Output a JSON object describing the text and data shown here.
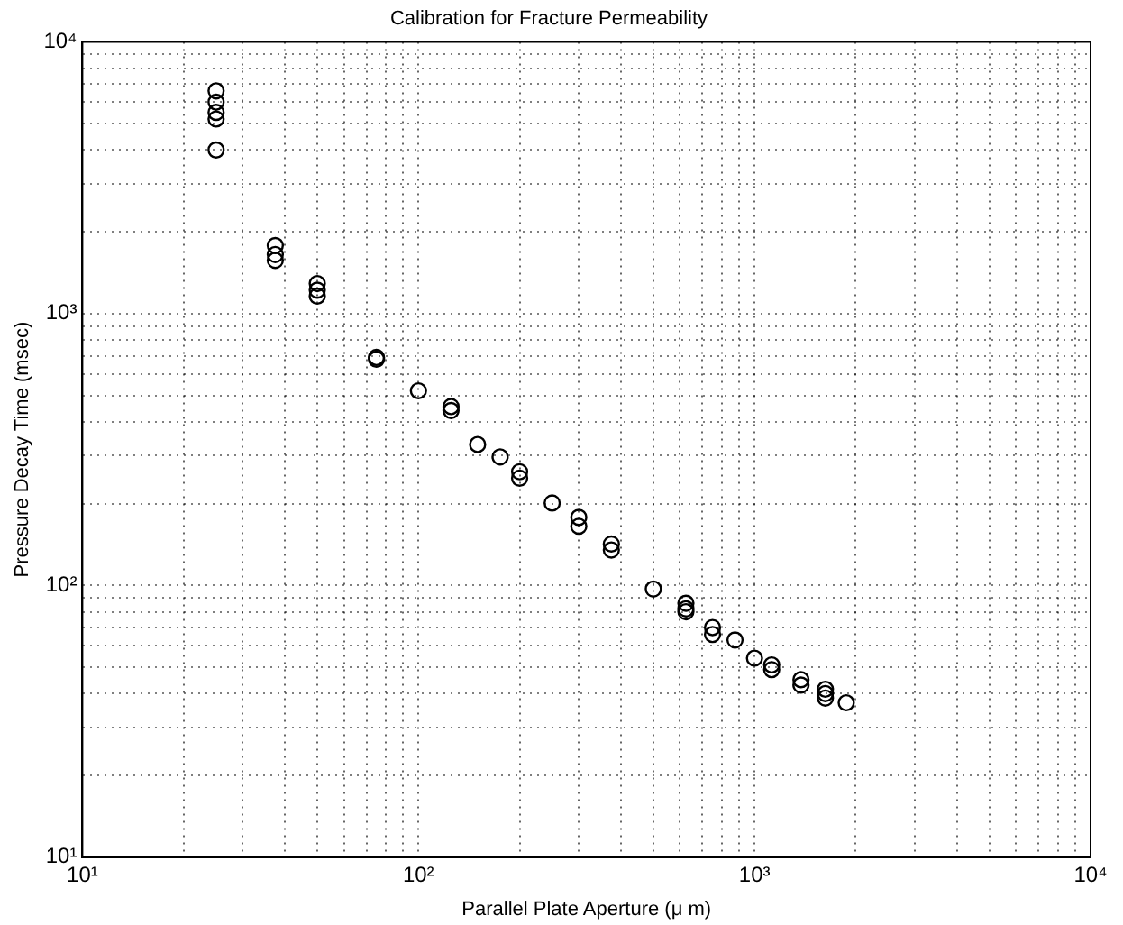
{
  "chart_data": {
    "type": "scatter",
    "title": "Calibration for Fracture Permeability",
    "xlabel": "Parallel Plate Aperture (μ m)",
    "ylabel": "Pressure Decay Time (msec)",
    "log": "xy",
    "grid": true,
    "marker": "circle",
    "legend": false,
    "series": [
      {
        "color": "#000000",
        "x": [
          25,
          25,
          25,
          25,
          25,
          37.5,
          37.5,
          37.5,
          50,
          50,
          50,
          75,
          75,
          100,
          125,
          125,
          150,
          175,
          200,
          200,
          250,
          300,
          300,
          375,
          375,
          500,
          625,
          625,
          625,
          750,
          750,
          875,
          1000,
          1125,
          1125,
          1375,
          1375,
          1625,
          1625,
          1625,
          1875
        ],
        "values": [
          6600,
          6000,
          5500,
          5200,
          4000,
          1780,
          1650,
          1570,
          1290,
          1220,
          1160,
          690,
          680,
          520,
          455,
          440,
          330,
          297,
          262,
          248,
          201,
          178,
          165,
          142,
          135,
          97,
          86,
          82,
          80,
          70,
          66,
          63,
          54,
          51,
          49,
          45,
          43,
          41.5,
          40,
          38.5,
          37
        ]
      }
    ],
    "xlim": [
      10,
      10000
    ],
    "ylim": [
      10,
      10000
    ],
    "xticks": [
      {
        "value": 10,
        "label": "10¹"
      },
      {
        "value": 20,
        "label": null
      },
      {
        "value": 30,
        "label": null
      },
      {
        "value": 40,
        "label": null
      },
      {
        "value": 50,
        "label": null
      },
      {
        "value": 60,
        "label": null
      },
      {
        "value": 70,
        "label": null
      },
      {
        "value": 80,
        "label": null
      },
      {
        "value": 90,
        "label": null
      },
      {
        "value": 100,
        "label": "10²"
      },
      {
        "value": 200,
        "label": null
      },
      {
        "value": 300,
        "label": null
      },
      {
        "value": 400,
        "label": null
      },
      {
        "value": 500,
        "label": null
      },
      {
        "value": 600,
        "label": null
      },
      {
        "value": 700,
        "label": null
      },
      {
        "value": 800,
        "label": null
      },
      {
        "value": 900,
        "label": null
      },
      {
        "value": 1000,
        "label": "10³"
      },
      {
        "value": 2000,
        "label": null
      },
      {
        "value": 3000,
        "label": null
      },
      {
        "value": 4000,
        "label": null
      },
      {
        "value": 5000,
        "label": null
      },
      {
        "value": 6000,
        "label": null
      },
      {
        "value": 7000,
        "label": null
      },
      {
        "value": 8000,
        "label": null
      },
      {
        "value": 9000,
        "label": null
      },
      {
        "value": 10000,
        "label": "10⁴"
      }
    ],
    "yticks": [
      {
        "value": 10,
        "label": "10¹"
      },
      {
        "value": 20,
        "label": null
      },
      {
        "value": 30,
        "label": null
      },
      {
        "value": 40,
        "label": null
      },
      {
        "value": 50,
        "label": null
      },
      {
        "value": 60,
        "label": null
      },
      {
        "value": 70,
        "label": null
      },
      {
        "value": 80,
        "label": null
      },
      {
        "value": 90,
        "label": null
      },
      {
        "value": 100,
        "label": "10²"
      },
      {
        "value": 200,
        "label": null
      },
      {
        "value": 300,
        "label": null
      },
      {
        "value": 400,
        "label": null
      },
      {
        "value": 500,
        "label": null
      },
      {
        "value": 600,
        "label": null
      },
      {
        "value": 700,
        "label": null
      },
      {
        "value": 800,
        "label": null
      },
      {
        "value": 900,
        "label": null
      },
      {
        "value": 1000,
        "label": "10³"
      },
      {
        "value": 2000,
        "label": null
      },
      {
        "value": 3000,
        "label": null
      },
      {
        "value": 4000,
        "label": null
      },
      {
        "value": 5000,
        "label": null
      },
      {
        "value": 6000,
        "label": null
      },
      {
        "value": 7000,
        "label": null
      },
      {
        "value": 8000,
        "label": null
      },
      {
        "value": 9000,
        "label": null
      },
      {
        "value": 10000,
        "label": "10⁴"
      }
    ]
  }
}
